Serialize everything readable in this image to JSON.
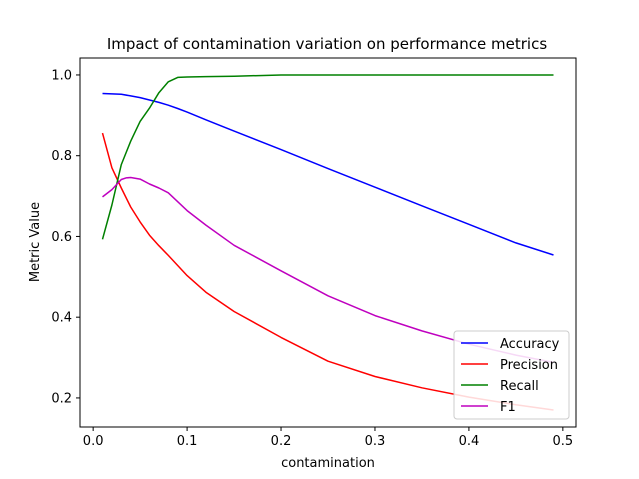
{
  "chart_data": {
    "type": "line",
    "title": "Impact of contamination variation on performance metrics",
    "xlabel": "contamination",
    "ylabel": "Metric Value",
    "xlim": [
      -0.014,
      0.514
    ],
    "ylim": [
      0.128,
      1.042
    ],
    "xticks": [
      0,
      0.1,
      0.2,
      0.3,
      0.4,
      0.5
    ],
    "xtick_labels": [
      "0.0",
      "0.1",
      "0.2",
      "0.3",
      "0.4",
      "0.5"
    ],
    "yticks": [
      0.2,
      0.4,
      0.6,
      0.8,
      1.0
    ],
    "ytick_labels": [
      "0.2",
      "0.4",
      "0.6",
      "0.8",
      "1.0"
    ],
    "grid": false,
    "legend_position": "lower-right",
    "series": [
      {
        "name": "Accuracy",
        "color": "#0000ff",
        "x": [
          0.01,
          0.02,
          0.03,
          0.04,
          0.05,
          0.06,
          0.07,
          0.08,
          0.09,
          0.1,
          0.12,
          0.15,
          0.2,
          0.25,
          0.3,
          0.35,
          0.4,
          0.45,
          0.49
        ],
        "y": [
          0.954,
          0.953,
          0.952,
          0.948,
          0.944,
          0.938,
          0.932,
          0.925,
          0.917,
          0.908,
          0.889,
          0.861,
          0.815,
          0.768,
          0.722,
          0.676,
          0.63,
          0.584,
          0.554
        ]
      },
      {
        "name": "Precision",
        "color": "#ff0000",
        "x": [
          0.01,
          0.02,
          0.03,
          0.04,
          0.05,
          0.06,
          0.07,
          0.08,
          0.09,
          0.1,
          0.12,
          0.15,
          0.2,
          0.25,
          0.3,
          0.35,
          0.4,
          0.45,
          0.49
        ],
        "y": [
          0.856,
          0.77,
          0.72,
          0.673,
          0.636,
          0.603,
          0.577,
          0.553,
          0.528,
          0.503,
          0.462,
          0.414,
          0.35,
          0.291,
          0.253,
          0.225,
          0.202,
          0.183,
          0.17
        ]
      },
      {
        "name": "Recall",
        "color": "#008000",
        "x": [
          0.01,
          0.02,
          0.03,
          0.04,
          0.05,
          0.06,
          0.07,
          0.08,
          0.09,
          0.1,
          0.12,
          0.15,
          0.2,
          0.25,
          0.3,
          0.35,
          0.4,
          0.45,
          0.49
        ],
        "y": [
          0.593,
          0.678,
          0.778,
          0.836,
          0.885,
          0.918,
          0.956,
          0.983,
          0.994,
          0.995,
          0.996,
          0.997,
          1.0,
          1.0,
          1.0,
          1.0,
          1.0,
          1.0,
          1.0
        ]
      },
      {
        "name": "F1",
        "color": "#bf00bf",
        "x": [
          0.01,
          0.02,
          0.03,
          0.035,
          0.04,
          0.05,
          0.06,
          0.07,
          0.08,
          0.09,
          0.1,
          0.12,
          0.15,
          0.2,
          0.25,
          0.3,
          0.35,
          0.4,
          0.45,
          0.49
        ],
        "y": [
          0.698,
          0.716,
          0.741,
          0.745,
          0.746,
          0.742,
          0.73,
          0.72,
          0.708,
          0.686,
          0.664,
          0.628,
          0.578,
          0.515,
          0.453,
          0.404,
          0.366,
          0.333,
          0.306,
          0.288
        ]
      }
    ]
  }
}
